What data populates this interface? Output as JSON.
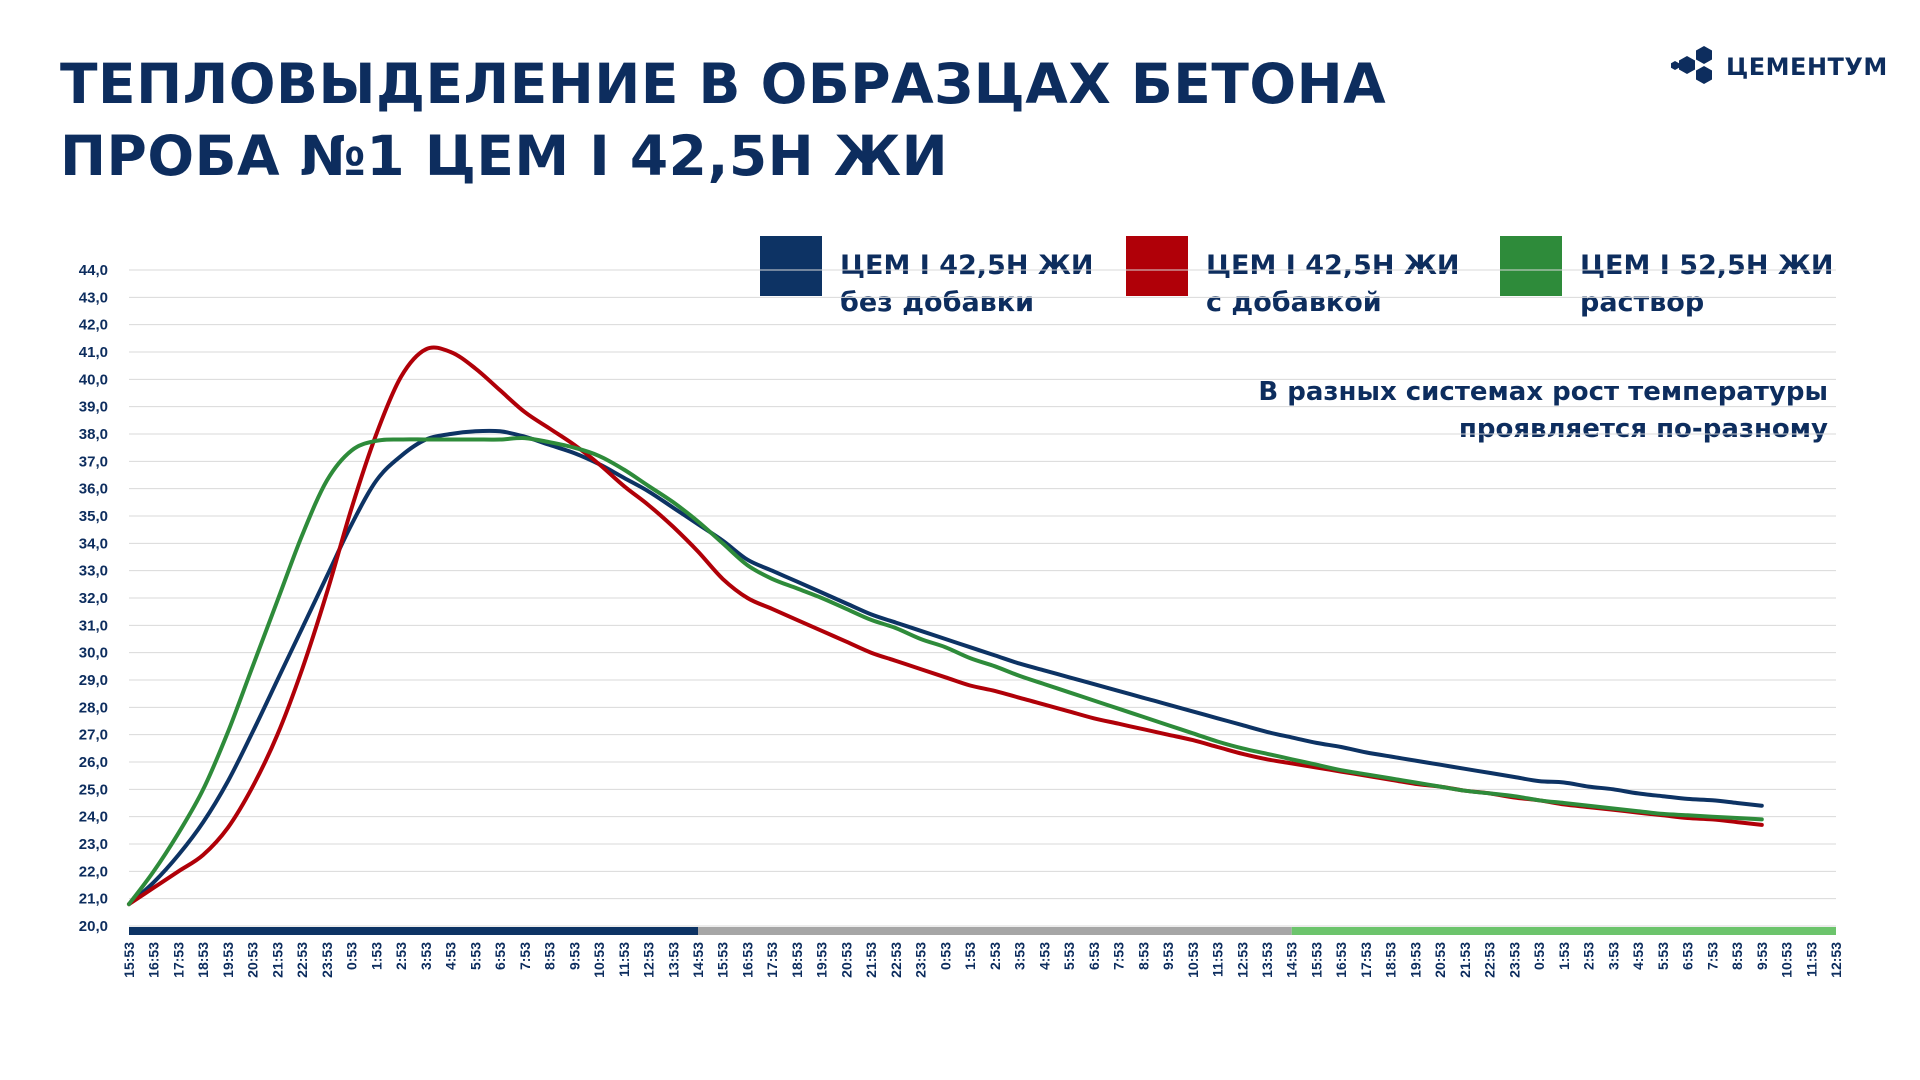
{
  "header": {
    "title_line1": "ТЕПЛОВЫДЕЛЕНИЕ В ОБРАЗЦАХ БЕТОНА",
    "title_line2": "ПРОБА №1 ЦЕМ I 42,5Н ЖИ"
  },
  "logo": {
    "text": "ЦЕМЕНТУМ",
    "icon": "hexagon-cluster-icon"
  },
  "legend": [
    {
      "line1": "ЦЕМ I 42,5Н ЖИ",
      "line2": "без добавки",
      "color": "#0d3364"
    },
    {
      "line1": "ЦЕМ I 42,5Н ЖИ",
      "line2": "с добавкой",
      "color": "#b00008"
    },
    {
      "line1": "ЦЕМ I 52,5Н ЖИ",
      "line2": "раствор",
      "color": "#2e8b3a"
    }
  ],
  "note": {
    "line1": "В разных системах рост температуры",
    "line2": "проявляется по-разному"
  },
  "chart_data": {
    "type": "line",
    "title": "ТЕПЛОВЫДЕЛЕНИЕ В ОБРАЗЦАХ БЕТОНА",
    "xlabel": "",
    "ylabel": "",
    "ylim": [
      20,
      44
    ],
    "y_ticks": [
      "20,0",
      "21,0",
      "22,0",
      "23,0",
      "24,0",
      "25,0",
      "26,0",
      "27,0",
      "28,0",
      "29,0",
      "30,0",
      "31,0",
      "32,0",
      "33,0",
      "34,0",
      "35,0",
      "36,0",
      "37,0",
      "38,0",
      "39,0",
      "40,0",
      "41,0",
      "42,0",
      "43,0",
      "44,0"
    ],
    "x_labels": [
      "15:53",
      "16:53",
      "17:53",
      "18:53",
      "19:53",
      "20:53",
      "21:53",
      "22:53",
      "23:53",
      "0:53",
      "1:53",
      "2:53",
      "3:53",
      "4:53",
      "5:53",
      "6:53",
      "7:53",
      "8:53",
      "9:53",
      "10:53",
      "11:53",
      "12:53",
      "13:53",
      "14:53",
      "15:53",
      "16:53",
      "17:53",
      "18:53",
      "19:53",
      "20:53",
      "21:53",
      "22:53",
      "23:53",
      "0:53",
      "1:53",
      "2:53",
      "3:53",
      "4:53",
      "5:53",
      "6:53",
      "7:53",
      "8:53",
      "9:53",
      "10:53",
      "11:53",
      "12:53",
      "13:53",
      "14:53",
      "15:53",
      "16:53",
      "17:53",
      "18:53",
      "19:53",
      "20:53",
      "21:53",
      "22:53",
      "23:53",
      "0:53",
      "1:53",
      "2:53",
      "3:53",
      "4:53",
      "5:53",
      "6:53",
      "7:53",
      "8:53",
      "9:53",
      "10:53",
      "11:53",
      "12:53"
    ],
    "grid": true,
    "legend_position": "top",
    "day_bands": [
      {
        "from": 0,
        "to": 23,
        "color": "#0d3364"
      },
      {
        "from": 23,
        "to": 47,
        "color": "#a6a6a6"
      },
      {
        "from": 47,
        "to": 69,
        "color": "#6cc46c"
      }
    ],
    "series": [
      {
        "name": "ЦЕМ I 42,5Н ЖИ без добавки",
        "color": "#0d3364",
        "x": [
          0,
          1,
          2,
          3,
          4,
          5,
          6,
          7,
          8,
          9,
          10,
          11,
          12,
          13,
          14,
          15,
          16,
          17,
          18,
          19,
          20,
          21,
          22,
          23,
          24,
          25,
          26,
          27,
          28,
          29,
          30,
          31,
          32,
          33,
          34,
          35,
          36,
          37,
          38,
          39,
          40,
          41,
          42,
          43,
          44,
          45,
          46,
          47,
          48,
          49,
          50,
          51,
          52,
          53,
          54,
          55,
          56,
          57,
          58,
          59,
          60,
          61,
          62,
          63,
          64,
          65,
          66
        ],
        "values": [
          20.8,
          21.6,
          22.6,
          23.8,
          25.3,
          27.1,
          29.0,
          30.9,
          32.8,
          34.7,
          36.3,
          37.2,
          37.8,
          38.0,
          38.1,
          38.1,
          37.9,
          37.6,
          37.3,
          36.9,
          36.4,
          35.9,
          35.3,
          34.7,
          34.1,
          33.4,
          33.0,
          32.6,
          32.2,
          31.8,
          31.4,
          31.1,
          30.8,
          30.5,
          30.2,
          29.9,
          29.6,
          29.35,
          29.1,
          28.85,
          28.6,
          28.35,
          28.1,
          27.85,
          27.6,
          27.35,
          27.1,
          26.9,
          26.7,
          26.55,
          26.35,
          26.2,
          26.05,
          25.9,
          25.75,
          25.6,
          25.45,
          25.3,
          25.25,
          25.1,
          25.0,
          24.85,
          24.75,
          24.65,
          24.6,
          24.5,
          24.4
        ]
      },
      {
        "name": "ЦЕМ I 42,5Н ЖИ с добавкой",
        "color": "#b00008",
        "x": [
          0,
          1,
          2,
          3,
          4,
          5,
          6,
          7,
          8,
          9,
          10,
          11,
          12,
          13,
          14,
          15,
          16,
          17,
          18,
          19,
          20,
          21,
          22,
          23,
          24,
          25,
          26,
          27,
          28,
          29,
          30,
          31,
          32,
          33,
          34,
          35,
          36,
          37,
          38,
          39,
          40,
          41,
          42,
          43,
          44,
          45,
          46,
          47,
          48,
          49,
          50,
          51,
          52,
          53,
          54,
          55,
          56,
          57,
          58,
          59,
          60,
          61,
          62,
          63,
          64,
          65,
          66
        ],
        "values": [
          20.8,
          21.4,
          22.0,
          22.6,
          23.6,
          25.1,
          27.0,
          29.4,
          32.2,
          35.3,
          38.0,
          40.1,
          41.1,
          41.0,
          40.4,
          39.6,
          38.8,
          38.2,
          37.6,
          36.9,
          36.1,
          35.4,
          34.6,
          33.7,
          32.7,
          32.0,
          31.6,
          31.2,
          30.8,
          30.4,
          30.0,
          29.7,
          29.4,
          29.1,
          28.8,
          28.6,
          28.35,
          28.1,
          27.85,
          27.6,
          27.4,
          27.2,
          27.0,
          26.8,
          26.55,
          26.3,
          26.1,
          25.95,
          25.8,
          25.65,
          25.5,
          25.35,
          25.2,
          25.1,
          24.95,
          24.85,
          24.7,
          24.6,
          24.45,
          24.35,
          24.25,
          24.15,
          24.05,
          23.95,
          23.9,
          23.8,
          23.7
        ]
      },
      {
        "name": "ЦЕМ I 52,5Н ЖИ раствор",
        "color": "#2e8b3a",
        "x": [
          0,
          1,
          2,
          3,
          4,
          5,
          6,
          7,
          8,
          9,
          10,
          11,
          12,
          13,
          14,
          15,
          16,
          17,
          18,
          19,
          20,
          21,
          22,
          23,
          24,
          25,
          26,
          27,
          28,
          29,
          30,
          31,
          32,
          33,
          34,
          35,
          36,
          37,
          38,
          39,
          40,
          41,
          42,
          43,
          44,
          45,
          46,
          47,
          48,
          49,
          50,
          51,
          52,
          53,
          54,
          55,
          56,
          57,
          58,
          59,
          60,
          61,
          62,
          63,
          64,
          65,
          66
        ],
        "values": [
          20.8,
          22.0,
          23.4,
          25.0,
          27.1,
          29.5,
          31.9,
          34.3,
          36.3,
          37.4,
          37.75,
          37.8,
          37.8,
          37.8,
          37.8,
          37.8,
          37.85,
          37.7,
          37.5,
          37.2,
          36.7,
          36.1,
          35.5,
          34.8,
          34.0,
          33.2,
          32.7,
          32.35,
          32.0,
          31.6,
          31.2,
          30.9,
          30.5,
          30.2,
          29.8,
          29.5,
          29.15,
          28.85,
          28.55,
          28.25,
          27.95,
          27.65,
          27.35,
          27.05,
          26.75,
          26.5,
          26.3,
          26.1,
          25.9,
          25.7,
          25.55,
          25.4,
          25.25,
          25.1,
          24.95,
          24.85,
          24.75,
          24.6,
          24.5,
          24.4,
          24.3,
          24.2,
          24.1,
          24.05,
          24.0,
          23.95,
          23.9
        ]
      }
    ]
  }
}
